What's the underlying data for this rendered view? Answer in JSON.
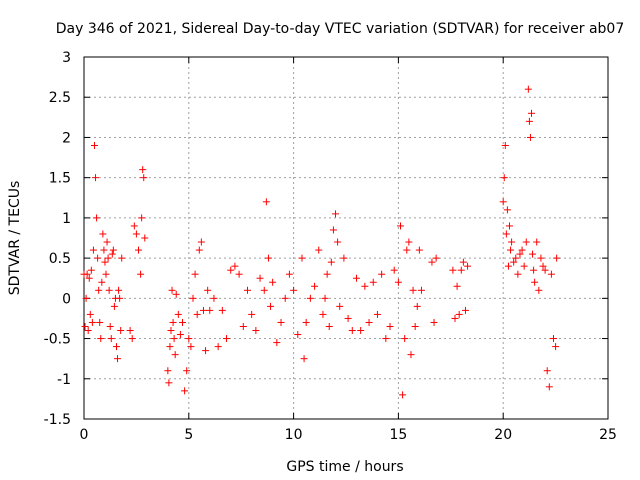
{
  "chart_data": {
    "type": "scatter",
    "title": "Day 346 of 2021, Sidereal Day-to-day VTEC variation (SDTVAR) for receiver ab07",
    "xlabel": "GPS time / hours",
    "ylabel": "SDTVAR / TECUs",
    "xlim": [
      0,
      25
    ],
    "ylim": [
      -1.5,
      3
    ],
    "xticks": [
      "0",
      "5",
      "10",
      "15",
      "20",
      "25"
    ],
    "yticks": [
      "-1.5",
      "-1",
      "-0.5",
      "0",
      "0.5",
      "1",
      "1.5",
      "2",
      "2.5",
      "3"
    ],
    "grid": true,
    "marker": "+",
    "series_color": "#ff0000",
    "series": [
      {
        "name": "SDTVAR",
        "x": [
          0.0,
          0.05,
          0.1,
          0.15,
          0.2,
          0.25,
          0.3,
          0.35,
          0.4,
          0.45,
          0.5,
          0.55,
          0.6,
          0.65,
          0.7,
          0.75,
          0.8,
          0.85,
          0.9,
          0.95,
          1.0,
          1.05,
          1.1,
          1.15,
          1.2,
          1.25,
          1.3,
          1.35,
          1.4,
          1.45,
          1.5,
          1.55,
          1.6,
          1.65,
          1.7,
          1.75,
          1.8,
          2.2,
          2.3,
          2.4,
          2.5,
          2.6,
          2.7,
          2.75,
          2.8,
          2.85,
          2.9,
          4.0,
          4.05,
          4.1,
          4.15,
          4.2,
          4.25,
          4.3,
          4.35,
          4.4,
          4.5,
          4.6,
          4.7,
          4.8,
          4.9,
          5.0,
          5.1,
          5.2,
          5.3,
          5.4,
          5.5,
          5.6,
          5.7,
          5.8,
          5.9,
          6.0,
          6.2,
          6.4,
          6.6,
          6.8,
          7.0,
          7.2,
          7.4,
          7.6,
          7.8,
          8.0,
          8.2,
          8.4,
          8.6,
          8.7,
          8.8,
          8.9,
          9.0,
          9.2,
          9.4,
          9.6,
          9.8,
          10.0,
          10.2,
          10.4,
          10.5,
          10.6,
          10.8,
          11.0,
          11.2,
          11.4,
          11.5,
          11.6,
          11.7,
          11.8,
          11.9,
          12.0,
          12.1,
          12.2,
          12.4,
          12.6,
          12.8,
          13.0,
          13.2,
          13.4,
          13.6,
          13.8,
          14.0,
          14.2,
          14.4,
          14.6,
          14.8,
          15.0,
          15.1,
          15.2,
          15.3,
          15.4,
          15.5,
          15.6,
          15.7,
          15.8,
          15.9,
          16.0,
          16.1,
          16.6,
          16.7,
          16.8,
          17.6,
          17.7,
          17.8,
          17.9,
          18.0,
          18.1,
          18.2,
          18.3,
          20.0,
          20.05,
          20.1,
          20.15,
          20.2,
          20.25,
          20.3,
          20.35,
          20.4,
          20.5,
          20.6,
          20.7,
          20.8,
          20.9,
          21.0,
          21.1,
          21.2,
          21.25,
          21.3,
          21.35,
          21.4,
          21.45,
          21.5,
          21.6,
          21.7,
          21.8,
          21.9,
          22.0,
          22.1,
          22.2,
          22.3,
          22.4,
          22.5,
          22.55
        ],
        "y": [
          0.3,
          -0.35,
          0.0,
          0.3,
          -0.4,
          0.25,
          -0.2,
          0.35,
          -0.3,
          0.6,
          1.9,
          1.5,
          1.0,
          0.5,
          0.1,
          -0.3,
          -0.5,
          0.2,
          0.8,
          0.6,
          0.45,
          0.3,
          0.7,
          0.5,
          0.1,
          -0.35,
          -0.5,
          0.55,
          0.6,
          -0.1,
          0.0,
          -0.6,
          -0.75,
          0.1,
          0.0,
          -0.4,
          0.5,
          -0.4,
          -0.5,
          0.9,
          0.8,
          0.6,
          0.3,
          1.0,
          1.6,
          1.5,
          0.75,
          -0.9,
          -1.05,
          -0.6,
          -0.4,
          0.1,
          -0.3,
          -0.5,
          -0.7,
          0.05,
          -0.2,
          -0.45,
          -0.3,
          -1.15,
          -0.9,
          -0.5,
          -0.6,
          0.0,
          0.3,
          -0.2,
          0.6,
          0.7,
          -0.15,
          -0.65,
          0.1,
          -0.15,
          0.0,
          -0.6,
          -0.15,
          -0.5,
          0.35,
          0.4,
          0.3,
          -0.35,
          0.1,
          -0.2,
          -0.4,
          0.25,
          0.1,
          1.2,
          0.5,
          -0.1,
          0.2,
          -0.55,
          -0.3,
          0.0,
          0.3,
          0.1,
          -0.45,
          0.5,
          -0.75,
          -0.3,
          0.0,
          0.15,
          0.6,
          -0.2,
          0.0,
          0.3,
          -0.35,
          0.45,
          0.85,
          1.05,
          0.7,
          -0.1,
          0.5,
          -0.25,
          -0.4,
          0.25,
          -0.4,
          0.15,
          -0.3,
          0.2,
          -0.2,
          0.3,
          -0.5,
          -0.35,
          0.35,
          0.2,
          0.9,
          -1.2,
          -0.5,
          0.6,
          0.7,
          -0.7,
          0.1,
          -0.35,
          -0.1,
          0.6,
          0.1,
          0.45,
          -0.3,
          0.5,
          0.35,
          -0.25,
          0.15,
          -0.2,
          0.35,
          0.45,
          -0.15,
          0.4,
          1.2,
          1.5,
          1.9,
          0.8,
          1.1,
          0.4,
          0.9,
          0.6,
          0.7,
          0.45,
          0.5,
          0.3,
          0.55,
          0.6,
          0.4,
          0.7,
          2.6,
          2.2,
          2.0,
          2.3,
          0.55,
          0.35,
          0.2,
          0.7,
          0.1,
          0.5,
          0.4,
          0.35,
          -0.9,
          -1.1,
          0.3,
          -0.5,
          -0.6,
          0.5
        ]
      }
    ]
  }
}
